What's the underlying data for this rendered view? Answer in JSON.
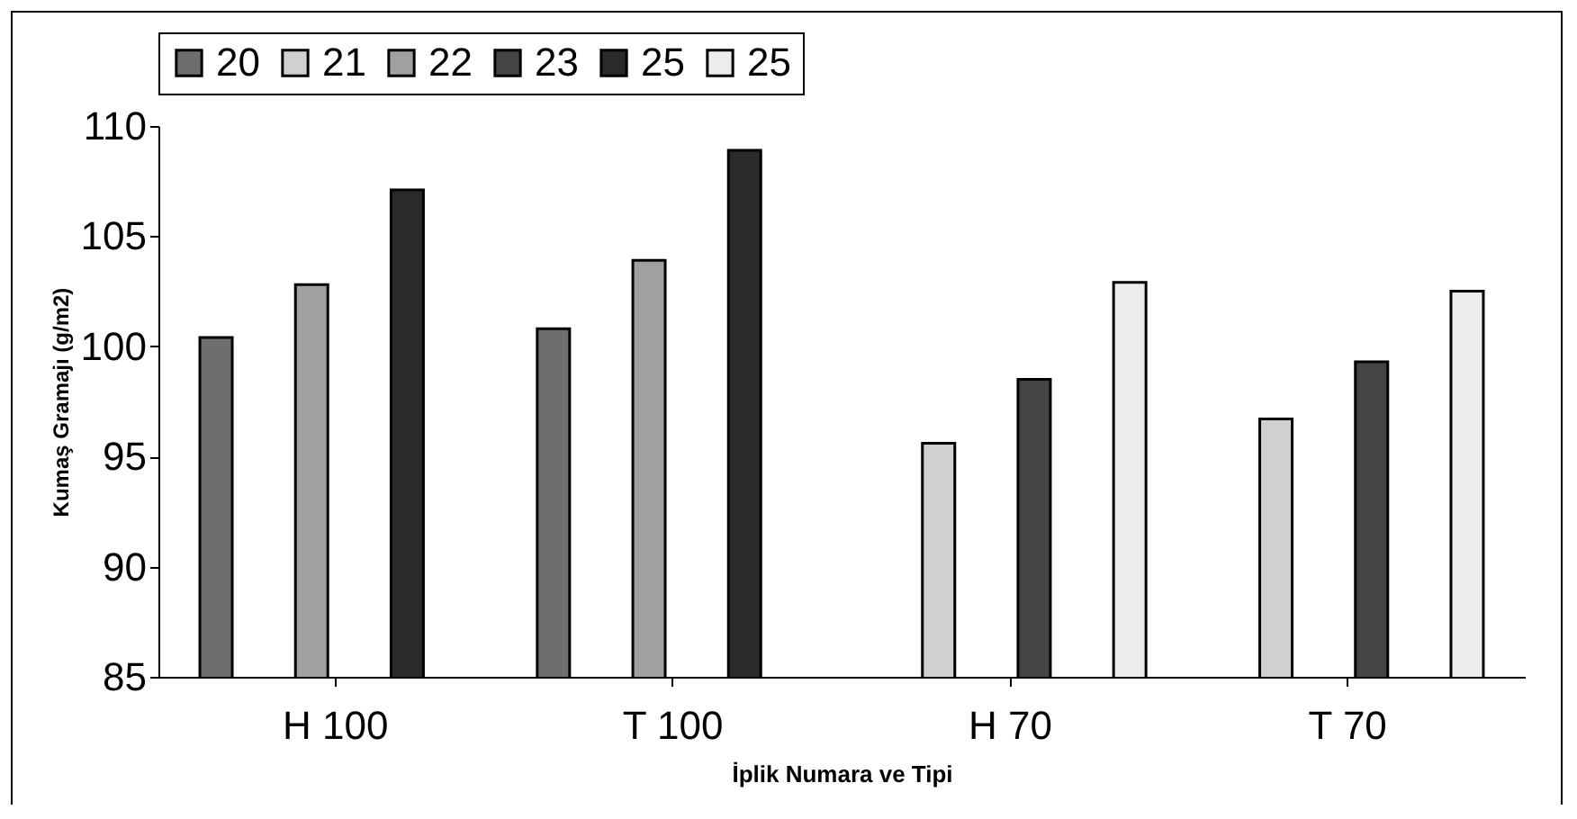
{
  "chart_data": {
    "type": "bar",
    "xlabel": "İplik Numara ve Tipi",
    "ylabel": "Kumaş Gramajı (g/m2)",
    "categories": [
      "H 100",
      "T 100",
      "H 70",
      "T 70"
    ],
    "series": [
      {
        "name": "20",
        "color": "#6e6e6e",
        "values": [
          100.4,
          100.8,
          null,
          null
        ]
      },
      {
        "name": "21",
        "color": "#d0d0d0",
        "values": [
          null,
          null,
          95.6,
          96.7
        ]
      },
      {
        "name": "22",
        "color": "#a0a0a0",
        "values": [
          102.8,
          103.9,
          null,
          null
        ]
      },
      {
        "name": "23",
        "color": "#444444",
        "values": [
          null,
          null,
          98.5,
          99.3
        ]
      },
      {
        "name": "25",
        "color": "#2a2a2a",
        "values": [
          107.1,
          108.9,
          null,
          null
        ]
      },
      {
        "name": "25",
        "color": "#ececec",
        "values": [
          null,
          null,
          102.9,
          102.5
        ]
      }
    ],
    "ylim": [
      85,
      110
    ],
    "yticks": [
      85,
      90,
      95,
      100,
      105,
      110
    ],
    "grid": false,
    "legend": "top"
  }
}
